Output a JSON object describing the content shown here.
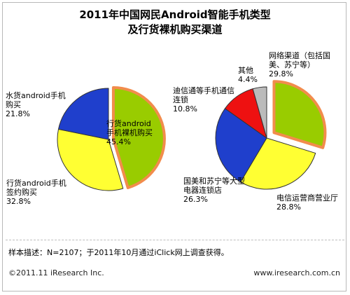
{
  "title_line1": "2011年中国网民Android智能手机类型",
  "title_line2": "及行货裸机购买渠道",
  "chart_data": [
    {
      "type": "pie",
      "labels": [
        "行货android手机裸机购买",
        "行货android手机签约购买",
        "水货android手机购买"
      ],
      "display_labels": [
        [
          "行货android",
          "手机裸机购买"
        ],
        [
          "行货android手机",
          "签约购买"
        ],
        [
          "水货android手机",
          "购买"
        ]
      ],
      "values": [
        45.4,
        32.8,
        21.8
      ],
      "value_labels": [
        "45.4%",
        "32.8%",
        "21.8%"
      ],
      "colors": [
        "#99cc00",
        "#ffff33",
        "#1f3fcc"
      ],
      "exploded": 0
    },
    {
      "type": "pie",
      "labels": [
        "网络渠道（包括国美、苏宁等）",
        "电信运营商营业厅",
        "国美和苏宁等大型电器连锁店",
        "迪信通等手机通信连锁",
        "其他"
      ],
      "display_labels": [
        [
          "网络渠道（包括国",
          "美、苏宁等）"
        ],
        [
          "电信运营商营业厅"
        ],
        [
          "国美和苏宁等大型",
          "电器连锁店"
        ],
        [
          "迪信通等手机通信",
          "连锁"
        ],
        [
          "其他"
        ]
      ],
      "values": [
        29.8,
        28.8,
        26.3,
        10.8,
        4.4
      ],
      "value_labels": [
        "29.8%",
        "28.8%",
        "26.3%",
        "10.8%",
        "4.4%"
      ],
      "colors": [
        "#99cc00",
        "#ffff33",
        "#1f3fcc",
        "#ee1111",
        "#bbbbbb"
      ],
      "exploded": 0
    }
  ],
  "note": "样本描述：N=2107；于2011年10月通过iClick网上调查获得。",
  "footer": {
    "copyright": "©2011.11  iResearch Inc.",
    "website": "www.iresearch.com.cn"
  },
  "colors": {
    "explode_border": "#f28c4c",
    "slice_border": "#333333"
  }
}
